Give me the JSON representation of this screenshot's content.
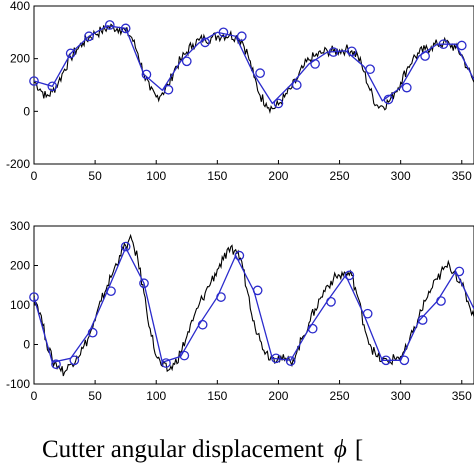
{
  "xlabel": {
    "text": "Cutter angular displacement",
    "symbol": "ϕ",
    "unit_open": "["
  },
  "chart_data": [
    {
      "type": "line",
      "xlim": [
        0,
        360
      ],
      "ylim": [
        -200,
        400
      ],
      "xticks": [
        0,
        50,
        100,
        150,
        200,
        250,
        300,
        350
      ],
      "yticks": [
        -200,
        0,
        200,
        400
      ],
      "grid": false,
      "colors": {
        "measured": "#000000",
        "model": "#2b2bcc"
      },
      "series": [
        {
          "style": "noisy-line",
          "x": [
            0,
            5,
            10,
            15,
            20,
            25,
            30,
            35,
            40,
            45,
            50,
            55,
            60,
            65,
            70,
            75,
            80,
            85,
            90,
            95,
            100,
            105,
            110,
            115,
            120,
            125,
            130,
            135,
            140,
            145,
            150,
            155,
            160,
            165,
            170,
            175,
            180,
            185,
            190,
            195,
            200,
            205,
            210,
            215,
            220,
            225,
            230,
            235,
            240,
            245,
            250,
            255,
            260,
            265,
            270,
            275,
            280,
            285,
            290,
            295,
            300,
            305,
            310,
            315,
            320,
            325,
            330,
            335,
            340,
            345,
            350,
            355,
            360
          ],
          "y": [
            115,
            85,
            55,
            75,
            110,
            160,
            205,
            235,
            260,
            280,
            295,
            305,
            318,
            320,
            315,
            305,
            280,
            220,
            140,
            80,
            55,
            70,
            100,
            160,
            195,
            225,
            255,
            270,
            275,
            280,
            285,
            290,
            290,
            285,
            270,
            215,
            130,
            60,
            30,
            10,
            25,
            55,
            85,
            120,
            165,
            195,
            210,
            220,
            230,
            228,
            232,
            235,
            230,
            210,
            150,
            80,
            25,
            20,
            35,
            70,
            110,
            160,
            200,
            220,
            235,
            245,
            255,
            260,
            255,
            240,
            215,
            160,
            110
          ]
        },
        {
          "style": "line-with-circles",
          "x": [
            0,
            15,
            30,
            45,
            60,
            75,
            90,
            105,
            120,
            135,
            150,
            165,
            180,
            195,
            210,
            225,
            240,
            255,
            270,
            285,
            300,
            315,
            330,
            345,
            360
          ],
          "y": [
            115,
            95,
            220,
            285,
            325,
            315,
            140,
            80,
            190,
            260,
            300,
            285,
            140,
            30,
            100,
            180,
            225,
            230,
            170,
            40,
            90,
            210,
            255,
            255,
            120
          ],
          "markers": [
            {
              "x": 0,
              "y": 115
            },
            {
              "x": 15,
              "y": 95
            },
            {
              "x": 30,
              "y": 220
            },
            {
              "x": 45,
              "y": 285
            },
            {
              "x": 62,
              "y": 328
            },
            {
              "x": 75,
              "y": 315
            },
            {
              "x": 92,
              "y": 140
            },
            {
              "x": 110,
              "y": 82
            },
            {
              "x": 125,
              "y": 190
            },
            {
              "x": 140,
              "y": 262
            },
            {
              "x": 155,
              "y": 300
            },
            {
              "x": 170,
              "y": 285
            },
            {
              "x": 185,
              "y": 145
            },
            {
              "x": 200,
              "y": 30
            },
            {
              "x": 215,
              "y": 100
            },
            {
              "x": 230,
              "y": 180
            },
            {
              "x": 245,
              "y": 225
            },
            {
              "x": 260,
              "y": 228
            },
            {
              "x": 275,
              "y": 160
            },
            {
              "x": 290,
              "y": 45
            },
            {
              "x": 305,
              "y": 90
            },
            {
              "x": 320,
              "y": 210
            },
            {
              "x": 335,
              "y": 255
            },
            {
              "x": 350,
              "y": 250
            }
          ]
        }
      ]
    },
    {
      "type": "line",
      "xlim": [
        0,
        360
      ],
      "ylim": [
        -100,
        300
      ],
      "xticks": [
        0,
        50,
        100,
        150,
        200,
        250,
        300,
        350
      ],
      "yticks": [
        -100,
        0,
        100,
        200,
        300
      ],
      "grid": false,
      "colors": {
        "measured": "#000000",
        "model": "#2b2bcc"
      },
      "series": [
        {
          "style": "noisy-line",
          "x": [
            0,
            5,
            10,
            15,
            20,
            25,
            30,
            35,
            40,
            45,
            50,
            55,
            60,
            65,
            70,
            75,
            80,
            85,
            90,
            95,
            100,
            105,
            110,
            115,
            120,
            125,
            130,
            135,
            140,
            145,
            150,
            155,
            160,
            165,
            170,
            175,
            180,
            185,
            190,
            195,
            200,
            205,
            210,
            215,
            220,
            225,
            230,
            235,
            240,
            245,
            250,
            255,
            260,
            265,
            270,
            275,
            280,
            285,
            290,
            295,
            300,
            305,
            310,
            315,
            320,
            325,
            330,
            335,
            340,
            345,
            350,
            355,
            360
          ],
          "y": [
            125,
            80,
            10,
            -40,
            -55,
            -70,
            -50,
            -30,
            -10,
            20,
            60,
            110,
            150,
            185,
            225,
            250,
            265,
            215,
            130,
            40,
            -30,
            -55,
            -65,
            -50,
            -20,
            20,
            60,
            100,
            130,
            160,
            190,
            215,
            235,
            240,
            210,
            130,
            60,
            10,
            -20,
            -35,
            -30,
            -40,
            -45,
            -20,
            20,
            55,
            90,
            120,
            150,
            165,
            175,
            180,
            175,
            120,
            50,
            0,
            -30,
            -40,
            -45,
            -35,
            -30,
            -10,
            30,
            70,
            110,
            140,
            165,
            190,
            200,
            180,
            150,
            110,
            70
          ]
        },
        {
          "style": "line-with-circles",
          "x": [
            0,
            15,
            30,
            45,
            60,
            75,
            90,
            105,
            120,
            135,
            150,
            165,
            180,
            195,
            210,
            225,
            240,
            255,
            270,
            285,
            300,
            315,
            330,
            345,
            360
          ],
          "y": [
            120,
            -45,
            -35,
            30,
            135,
            245,
            155,
            -45,
            -30,
            50,
            120,
            225,
            135,
            -35,
            -40,
            40,
            110,
            175,
            75,
            -40,
            -40,
            60,
            110,
            185,
            90
          ],
          "markers": [
            {
              "x": 0,
              "y": 120
            },
            {
              "x": 18,
              "y": -50
            },
            {
              "x": 33,
              "y": -40
            },
            {
              "x": 48,
              "y": 30
            },
            {
              "x": 63,
              "y": 135
            },
            {
              "x": 75,
              "y": 248
            },
            {
              "x": 90,
              "y": 155
            },
            {
              "x": 108,
              "y": -47
            },
            {
              "x": 123,
              "y": -28
            },
            {
              "x": 138,
              "y": 50
            },
            {
              "x": 153,
              "y": 120
            },
            {
              "x": 168,
              "y": 225
            },
            {
              "x": 183,
              "y": 137
            },
            {
              "x": 198,
              "y": -35
            },
            {
              "x": 210,
              "y": -42
            },
            {
              "x": 228,
              "y": 40
            },
            {
              "x": 243,
              "y": 108
            },
            {
              "x": 258,
              "y": 175
            },
            {
              "x": 273,
              "y": 78
            },
            {
              "x": 288,
              "y": -40
            },
            {
              "x": 303,
              "y": -40
            },
            {
              "x": 318,
              "y": 62
            },
            {
              "x": 333,
              "y": 110
            },
            {
              "x": 348,
              "y": 185
            }
          ]
        }
      ]
    }
  ]
}
